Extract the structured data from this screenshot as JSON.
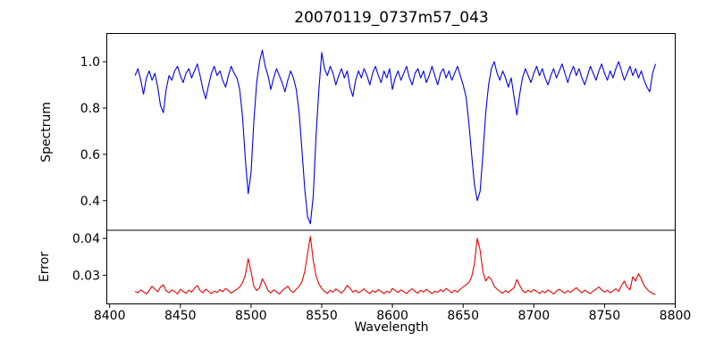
{
  "figure": {
    "title": "20070119_0737m57_043",
    "background_color": "#ffffff",
    "axes_edge_color": "#000000"
  },
  "chart_data": {
    "type": "line",
    "title": "20070119_0737m57_043",
    "xlabel": "Wavelength",
    "xlim": [
      8398,
      8800
    ],
    "x_ticks": [
      8400,
      8450,
      8500,
      8550,
      8600,
      8650,
      8700,
      8750,
      8800
    ],
    "x_tick_labels": [
      "8400",
      "8450",
      "8500",
      "8550",
      "8600",
      "8650",
      "8700",
      "8750",
      "8800"
    ],
    "grid": false,
    "legend": "none",
    "notes": "Two vertically stacked panels sharing the x axis; deep absorption features at ~8498, ~8542, ~8662 in the spectrum with matching error peaks.",
    "panels": [
      {
        "name": "spectrum",
        "ylabel": "Spectrum",
        "color": "#0000ee",
        "ylim": [
          0.272,
          1.122
        ],
        "y_ticks": [
          0.4,
          0.6,
          0.8,
          1.0
        ],
        "y_tick_labels": [
          "0.4",
          "0.6",
          "0.8",
          "1.0"
        ],
        "x_start": 8418,
        "x_step": 2,
        "values": [
          0.94,
          0.97,
          0.92,
          0.86,
          0.93,
          0.96,
          0.92,
          0.95,
          0.89,
          0.81,
          0.78,
          0.88,
          0.94,
          0.92,
          0.96,
          0.98,
          0.94,
          0.91,
          0.95,
          0.97,
          0.93,
          0.96,
          0.99,
          0.94,
          0.88,
          0.84,
          0.9,
          0.95,
          0.98,
          0.94,
          0.96,
          0.92,
          0.89,
          0.94,
          0.98,
          0.95,
          0.93,
          0.88,
          0.76,
          0.58,
          0.43,
          0.52,
          0.74,
          0.91,
          1.0,
          1.05,
          0.98,
          0.94,
          0.88,
          0.93,
          0.97,
          0.94,
          0.91,
          0.87,
          0.92,
          0.96,
          0.93,
          0.88,
          0.78,
          0.62,
          0.45,
          0.33,
          0.3,
          0.42,
          0.68,
          0.88,
          1.04,
          0.97,
          0.94,
          0.98,
          0.95,
          0.9,
          0.94,
          0.97,
          0.93,
          0.96,
          0.89,
          0.85,
          0.92,
          0.96,
          0.93,
          0.97,
          0.94,
          0.9,
          0.95,
          0.98,
          0.94,
          0.91,
          0.96,
          0.93,
          0.97,
          0.88,
          0.93,
          0.96,
          0.92,
          0.95,
          0.98,
          0.93,
          0.9,
          0.95,
          0.97,
          0.93,
          0.96,
          0.91,
          0.94,
          0.98,
          0.94,
          0.9,
          0.95,
          0.97,
          0.93,
          0.96,
          0.92,
          0.95,
          0.98,
          0.94,
          0.9,
          0.85,
          0.74,
          0.6,
          0.47,
          0.4,
          0.44,
          0.6,
          0.78,
          0.9,
          0.97,
          1.0,
          0.95,
          0.92,
          0.96,
          0.93,
          0.89,
          0.93,
          0.85,
          0.77,
          0.86,
          0.93,
          0.97,
          0.94,
          0.91,
          0.95,
          0.98,
          0.94,
          0.97,
          0.93,
          0.9,
          0.94,
          0.97,
          0.93,
          0.96,
          0.99,
          0.95,
          0.91,
          0.95,
          0.98,
          0.94,
          0.97,
          0.93,
          0.9,
          0.94,
          0.98,
          0.95,
          0.92,
          0.96,
          0.99,
          0.95,
          0.92,
          0.96,
          0.93,
          0.97,
          1.0,
          0.96,
          0.92,
          0.95,
          0.98,
          0.94,
          0.97,
          0.93,
          0.96,
          0.92,
          0.89,
          0.87,
          0.95,
          0.99
        ]
      },
      {
        "name": "error",
        "ylabel": "Error",
        "color": "#ee0000",
        "ylim": [
          0.0222,
          0.0422
        ],
        "y_ticks": [
          0.03,
          0.04
        ],
        "y_tick_labels": [
          "0.03",
          "0.04"
        ],
        "x_start": 8418,
        "x_step": 2,
        "values": [
          0.0256,
          0.0252,
          0.026,
          0.0255,
          0.0249,
          0.0258,
          0.027,
          0.0262,
          0.0255,
          0.0268,
          0.0274,
          0.0258,
          0.0252,
          0.026,
          0.0256,
          0.0249,
          0.0262,
          0.0256,
          0.0251,
          0.0259,
          0.0254,
          0.0265,
          0.0272,
          0.0258,
          0.0252,
          0.0262,
          0.0256,
          0.025,
          0.0257,
          0.0253,
          0.0261,
          0.0255,
          0.0264,
          0.0258,
          0.0251,
          0.0257,
          0.0262,
          0.0268,
          0.028,
          0.03,
          0.0345,
          0.031,
          0.027,
          0.0258,
          0.0266,
          0.029,
          0.0276,
          0.0258,
          0.0252,
          0.026,
          0.0255,
          0.0249,
          0.0258,
          0.0264,
          0.027,
          0.0258,
          0.0253,
          0.0262,
          0.027,
          0.0282,
          0.031,
          0.036,
          0.0405,
          0.034,
          0.0298,
          0.0276,
          0.0264,
          0.0256,
          0.025,
          0.0259,
          0.0254,
          0.0263,
          0.0257,
          0.0251,
          0.026,
          0.0272,
          0.0265,
          0.0254,
          0.0259,
          0.0252,
          0.0257,
          0.0263,
          0.0255,
          0.025,
          0.0258,
          0.0253,
          0.0261,
          0.0256,
          0.025,
          0.0257,
          0.0252,
          0.0264,
          0.0258,
          0.0253,
          0.026,
          0.0255,
          0.025,
          0.0258,
          0.0263,
          0.0256,
          0.0251,
          0.0259,
          0.0254,
          0.0262,
          0.0256,
          0.025,
          0.0257,
          0.0253,
          0.0261,
          0.0255,
          0.0264,
          0.0258,
          0.0252,
          0.0259,
          0.0254,
          0.0262,
          0.0268,
          0.0274,
          0.028,
          0.0295,
          0.033,
          0.04,
          0.0368,
          0.031,
          0.0284,
          0.0296,
          0.0288,
          0.027,
          0.0262,
          0.0256,
          0.0251,
          0.0258,
          0.0253,
          0.026,
          0.0266,
          0.0288,
          0.0272,
          0.0258,
          0.0252,
          0.0259,
          0.0254,
          0.0261,
          0.0256,
          0.025,
          0.0257,
          0.0252,
          0.026,
          0.0255,
          0.0249,
          0.0257,
          0.0262,
          0.0256,
          0.0251,
          0.0258,
          0.0253,
          0.026,
          0.0266,
          0.0258,
          0.0252,
          0.0259,
          0.0254,
          0.025,
          0.0257,
          0.0262,
          0.0268,
          0.026,
          0.0254,
          0.0259,
          0.0252,
          0.0257,
          0.0263,
          0.0256,
          0.0272,
          0.0284,
          0.0268,
          0.026,
          0.0296,
          0.0284,
          0.0304,
          0.029,
          0.0272,
          0.0262,
          0.0255,
          0.025,
          0.0248
        ]
      }
    ]
  }
}
